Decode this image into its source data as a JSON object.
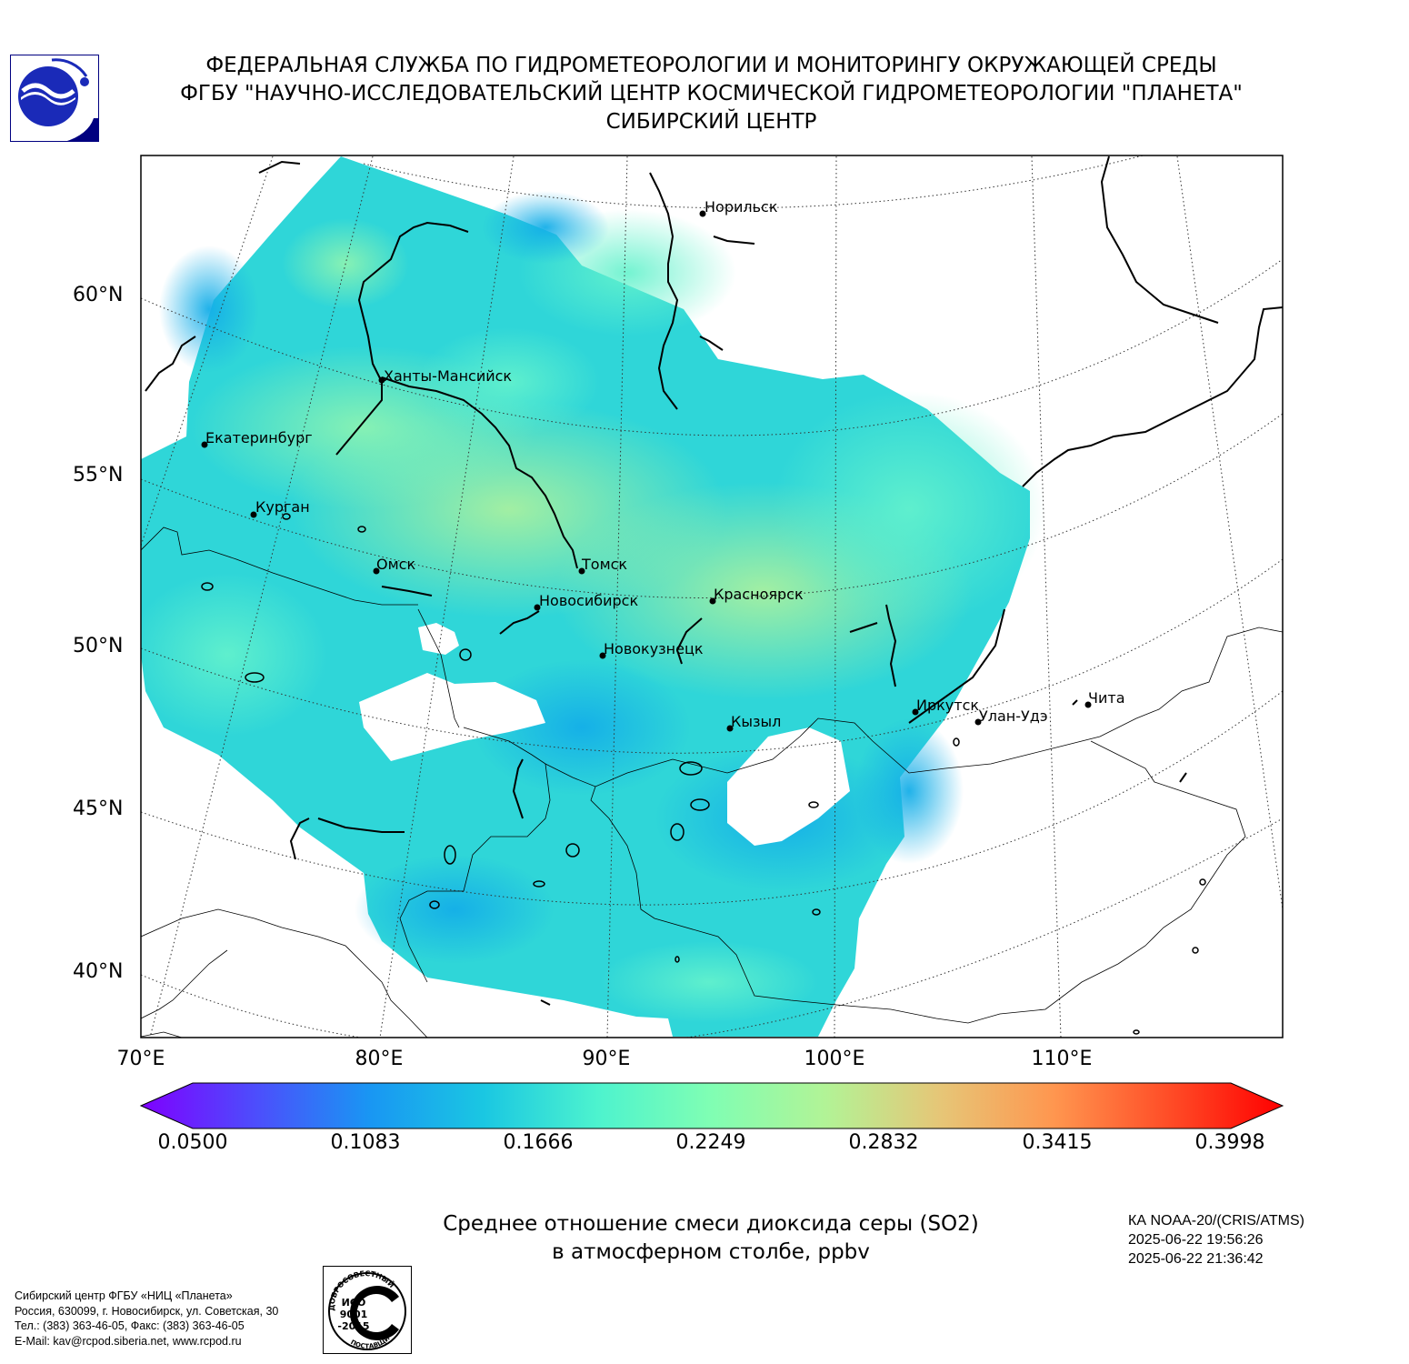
{
  "header": {
    "line1": "ФЕДЕРАЛЬНАЯ СЛУЖБА ПО ГИДРОМЕТЕОРОЛОГИИ И МОНИТОРИНГУ ОКРУЖАЮЩЕЙ СРЕДЫ",
    "line2": "ФГБУ \"НАУЧНО-ИССЛЕДОВАТЕЛЬСКИЙ ЦЕНТР КОСМИЧЕСКОЙ ГИДРОМЕТЕОРОЛОГИИ \"ПЛАНЕТА\"",
    "line3": "СИБИРСКИЙ ЦЕНТР"
  },
  "map": {
    "lat_labels": [
      "60°N",
      "55°N",
      "50°N",
      "45°N",
      "40°N"
    ],
    "lon_labels": [
      "70°E",
      "80°E",
      "90°E",
      "100°E",
      "110°E"
    ],
    "cities": [
      {
        "name": "Норильск"
      },
      {
        "name": "Ханты-Мансийск"
      },
      {
        "name": "Екатеринбург"
      },
      {
        "name": "Курган"
      },
      {
        "name": "Омск"
      },
      {
        "name": "Томск"
      },
      {
        "name": "Новосибирск"
      },
      {
        "name": "Красноярск"
      },
      {
        "name": "Новокузнецк"
      },
      {
        "name": "Иркутск"
      },
      {
        "name": "Улан-Удэ"
      },
      {
        "name": "Чита"
      },
      {
        "name": "Кызыл"
      }
    ]
  },
  "colorbar": {
    "min": 0.05,
    "max": 0.3998,
    "tick_labels": [
      "0.0500",
      "0.1083",
      "0.1666",
      "0.2249",
      "0.2832",
      "0.3415",
      "0.3998"
    ],
    "colormap": [
      "#7f00ff",
      "#4d4dfc",
      "#1996f3",
      "#1ac7e2",
      "#4df3ce",
      "#80feb3",
      "#b2f396",
      "#e6c677",
      "#ff964f",
      "#ff4d27",
      "#ff0000"
    ]
  },
  "caption": {
    "line1": "Среднее отношение смеси диоксида серы (SO2)",
    "line2": "в атмосферном столбе, ppbv"
  },
  "satellite": {
    "instrument": "КА NOAA-20/(CRIS/ATMS)",
    "time_start": "2025-06-22 19:56:26",
    "time_end": "2025-06-22 21:36:42"
  },
  "contacts": {
    "line1": "Сибирский центр ФГБУ «НИЦ «Планета»",
    "line2": "Россия, 630099, г. Новосибирск, ул. Советская, 30",
    "line3": "Тел.: (383) 363-46-05, Факс: (383) 363-46-05",
    "line4": "E-Mail: kav@rcpod.siberia.net, www.rcpod.ru"
  },
  "iso_badge": {
    "top_text": "ДОБРОСОВЕСТНЫЙ",
    "bottom_text": "ПОСТАВЩИК",
    "line1": "ИСО",
    "line2": "9001",
    "line3": "-2015"
  }
}
